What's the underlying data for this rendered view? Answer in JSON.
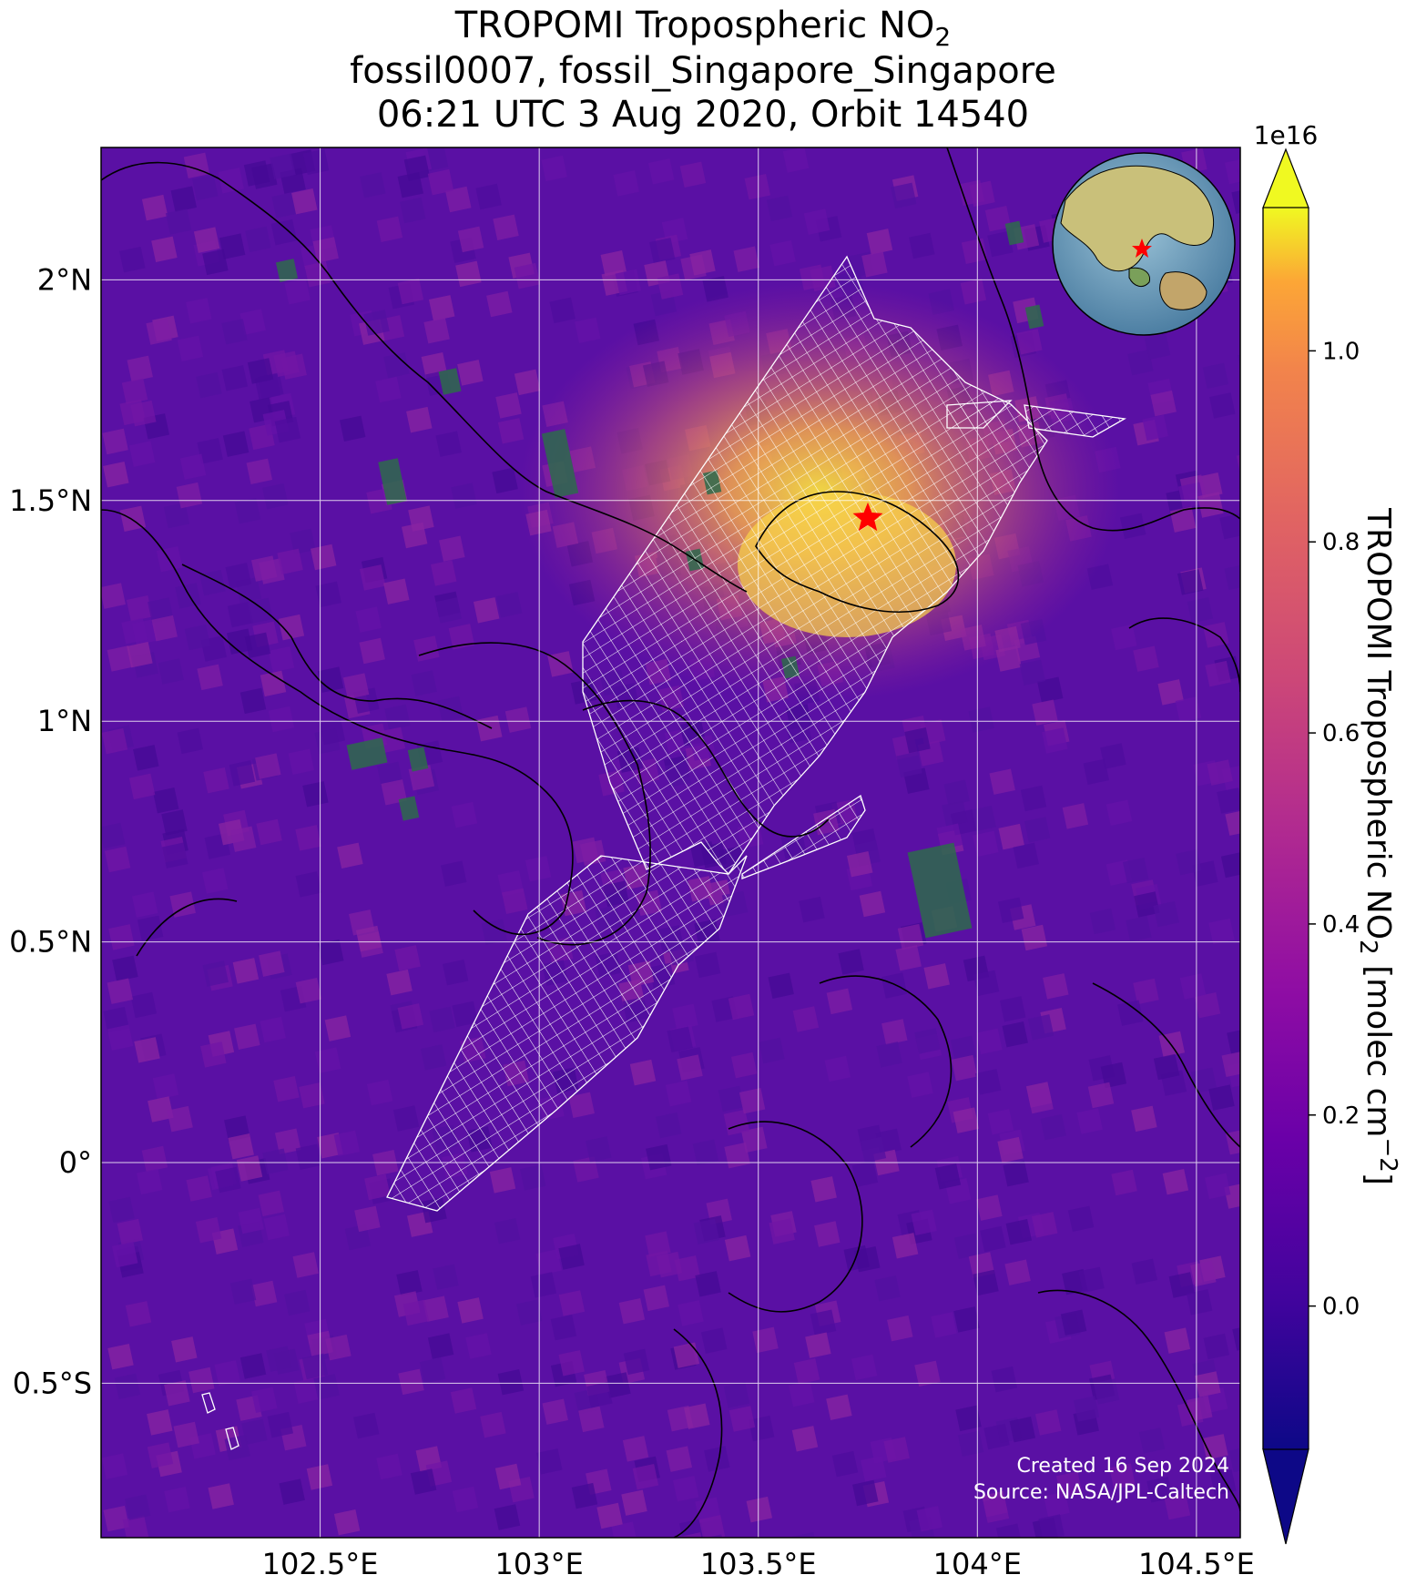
{
  "title": {
    "line1_prefix": "TROPOMI Tropospheric NO",
    "line1_sub": "2",
    "line2": "fossil0007, fossil_Singapore_Singapore",
    "line3": "06:21 UTC 3 Aug 2020, Orbit 14540"
  },
  "map": {
    "lon_range": [
      102.0,
      104.6
    ],
    "lat_range": [
      -0.85,
      2.3
    ],
    "x_ticks": [
      {
        "value": 102.5,
        "label": "102.5°E"
      },
      {
        "value": 103.0,
        "label": "103°E"
      },
      {
        "value": 103.5,
        "label": "103.5°E"
      },
      {
        "value": 104.0,
        "label": "104°E"
      },
      {
        "value": 104.5,
        "label": "104.5°E"
      }
    ],
    "y_ticks": [
      {
        "value": 2.0,
        "label": "2°N"
      },
      {
        "value": 1.5,
        "label": "1.5°N"
      },
      {
        "value": 1.0,
        "label": "1°N"
      },
      {
        "value": 0.5,
        "label": "0.5°N"
      },
      {
        "value": 0.0,
        "label": "0°"
      },
      {
        "value": -0.5,
        "label": "0.5°S"
      }
    ],
    "grid": true,
    "target": {
      "name": "fossil_Singapore_Singapore",
      "lon": 103.75,
      "lat": 1.46
    },
    "hotspot": {
      "lon": 103.7,
      "lat": 1.38
    },
    "background_color": "#5b0fa3",
    "hotspot_color": "#f8d040"
  },
  "colorbar": {
    "label_prefix": "TROPOMI Tropospheric NO",
    "label_sub": "2",
    "label_suffix": " [molec cm",
    "label_sup": "−2",
    "label_end": "]",
    "exponent": "1e16",
    "vmin": -0.15,
    "vmax": 1.15,
    "ticks": [
      {
        "value": 0.0,
        "label": "0.0"
      },
      {
        "value": 0.2,
        "label": "0.2"
      },
      {
        "value": 0.4,
        "label": "0.4"
      },
      {
        "value": 0.6,
        "label": "0.6"
      },
      {
        "value": 0.8,
        "label": "0.8"
      },
      {
        "value": 1.0,
        "label": "1.0"
      }
    ],
    "colormap": "plasma",
    "extend": "both"
  },
  "inset": {
    "description_marker": "red-star",
    "location": "top-right"
  },
  "credits": {
    "created": "Created 16 Sep 2024",
    "source": "Source: NASA/JPL-Caltech"
  }
}
